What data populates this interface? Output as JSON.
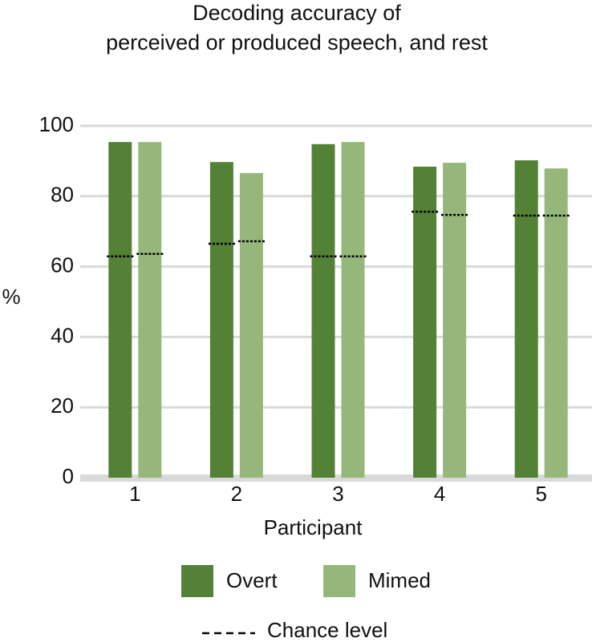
{
  "chart_data": {
    "type": "bar",
    "title": [
      "Decoding accuracy of",
      "perceived or produced speech, and rest"
    ],
    "y_label": "%",
    "x_label": "Participant",
    "categories": [
      "1",
      "2",
      "3",
      "4",
      "5"
    ],
    "series": [
      {
        "name": "Overt",
        "color": "#538135",
        "values": [
          95.4,
          89.7,
          94.8,
          88.4,
          90.2
        ],
        "chance": [
          62.9,
          66.5,
          62.9,
          75.6,
          74.5
        ]
      },
      {
        "name": "Mimed",
        "color": "#95b87a",
        "values": [
          95.4,
          86.6,
          95.4,
          89.5,
          87.9
        ],
        "chance": [
          63.6,
          67.2,
          62.9,
          74.7,
          74.5
        ]
      }
    ],
    "chance_name": "Chance level",
    "chance_color": "#000000",
    "ylim": [
      0,
      100
    ],
    "yticks": [
      0,
      20,
      40,
      60,
      80,
      100
    ],
    "grid": true
  }
}
